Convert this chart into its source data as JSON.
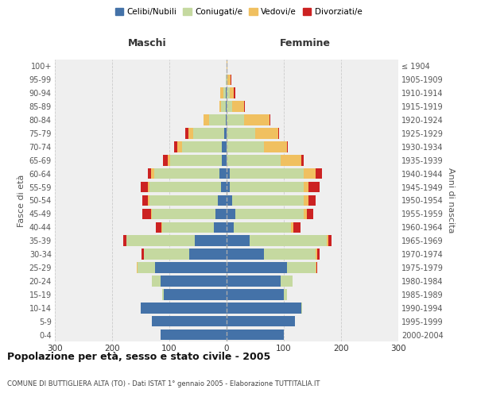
{
  "age_groups": [
    "0-4",
    "5-9",
    "10-14",
    "15-19",
    "20-24",
    "25-29",
    "30-34",
    "35-39",
    "40-44",
    "45-49",
    "50-54",
    "55-59",
    "60-64",
    "65-69",
    "70-74",
    "75-79",
    "80-84",
    "85-89",
    "90-94",
    "95-99",
    "100+"
  ],
  "birth_years": [
    "2000-2004",
    "1995-1999",
    "1990-1994",
    "1985-1989",
    "1980-1984",
    "1975-1979",
    "1970-1974",
    "1965-1969",
    "1960-1964",
    "1955-1959",
    "1950-1954",
    "1945-1949",
    "1940-1944",
    "1935-1939",
    "1930-1934",
    "1925-1929",
    "1920-1924",
    "1915-1919",
    "1910-1914",
    "1905-1909",
    "≤ 1904"
  ],
  "colors": {
    "celibi": "#4472a8",
    "coniugati": "#c5d9a0",
    "vedovi": "#f0c060",
    "divorziati": "#cc2222"
  },
  "maschi": {
    "celibi": [
      115,
      130,
      150,
      110,
      115,
      125,
      65,
      55,
      22,
      20,
      15,
      10,
      12,
      8,
      8,
      4,
      2,
      2,
      1,
      0,
      0
    ],
    "coniugati": [
      0,
      0,
      0,
      2,
      15,
      30,
      80,
      120,
      90,
      110,
      120,
      125,
      115,
      90,
      70,
      55,
      28,
      8,
      5,
      1,
      0
    ],
    "vedovi": [
      0,
      0,
      0,
      0,
      0,
      2,
      0,
      0,
      2,
      2,
      2,
      3,
      5,
      5,
      8,
      8,
      10,
      3,
      5,
      0,
      0
    ],
    "divorziati": [
      0,
      0,
      0,
      0,
      0,
      0,
      3,
      5,
      10,
      15,
      10,
      12,
      5,
      8,
      5,
      5,
      0,
      0,
      0,
      0,
      0
    ]
  },
  "femmine": {
    "celibi": [
      100,
      120,
      130,
      100,
      95,
      105,
      65,
      40,
      12,
      15,
      10,
      5,
      5,
      0,
      0,
      0,
      0,
      0,
      0,
      0,
      0
    ],
    "coniugati": [
      0,
      0,
      2,
      5,
      20,
      50,
      90,
      135,
      100,
      120,
      125,
      130,
      130,
      95,
      65,
      50,
      30,
      10,
      5,
      2,
      0
    ],
    "vedovi": [
      0,
      0,
      0,
      0,
      0,
      2,
      3,
      3,
      5,
      5,
      8,
      8,
      20,
      35,
      40,
      40,
      45,
      20,
      8,
      5,
      1
    ],
    "divorziati": [
      0,
      0,
      0,
      0,
      0,
      2,
      5,
      5,
      12,
      12,
      12,
      20,
      12,
      5,
      2,
      2,
      2,
      2,
      2,
      2,
      0
    ]
  },
  "xlim": 300,
  "title": "Popolazione per età, sesso e stato civile - 2005",
  "subtitle": "COMUNE DI BUTTIGLIERA ALTA (TO) - Dati ISTAT 1° gennaio 2005 - Elaborazione TUTTITALIA.IT",
  "ylabel_left": "Fasce di età",
  "ylabel_right": "Anni di nascita",
  "xlabel_left": "Maschi",
  "xlabel_right": "Femmine",
  "bg_color": "#efefef",
  "grid_color": "#cccccc"
}
